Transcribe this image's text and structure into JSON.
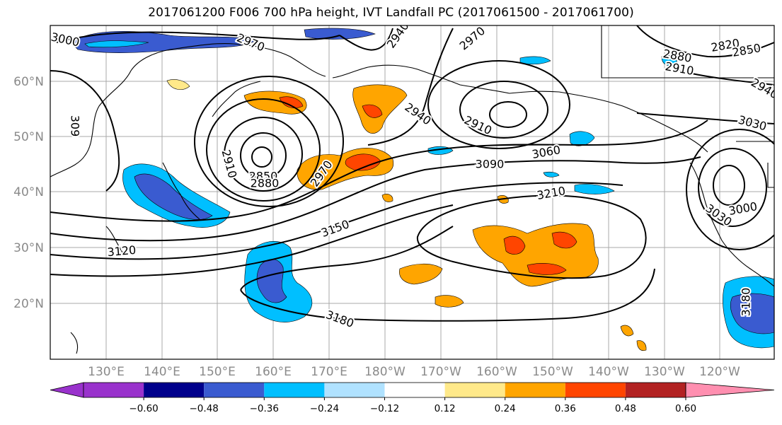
{
  "title": "2017061200 F006 700 hPa height, IVT Landfall PC (2017061500 - 2017061700)",
  "lat_labels": [
    "60°N",
    "50°N",
    "40°N",
    "30°N",
    "20°N"
  ],
  "lon_labels": [
    "130°E",
    "140°E",
    "150°E",
    "160°E",
    "170°E",
    "180°W",
    "170°W",
    "160°W",
    "150°W",
    "140°W",
    "130°W",
    "120°W"
  ],
  "contour_labels": [
    "3000",
    "2970",
    "2940",
    "2970",
    "2820",
    "2850",
    "2880",
    "2910",
    "2940",
    "3030",
    "2940",
    "2910",
    "3060",
    "3090",
    "3210",
    "2910",
    "2850",
    "2880",
    "2970",
    "3150",
    "3120",
    "3180",
    "3030",
    "3000",
    "3180",
    "309"
  ],
  "colorbar": {
    "tick_labels": [
      "−0.60",
      "−0.48",
      "−0.36",
      "−0.24",
      "−0.12",
      "0.12",
      "0.24",
      "0.36",
      "0.48",
      "0.60"
    ],
    "colors": [
      "#9932cc",
      "#00008b",
      "#3a5bd0",
      "#00bfff",
      "#b0e2ff",
      "#ffffff",
      "#ffe98a",
      "#ffa500",
      "#ff4500",
      "#b22222",
      "#ff8fb0"
    ]
  },
  "colors": {
    "land_outline": "#000000",
    "grid": "#a9a9a9"
  }
}
